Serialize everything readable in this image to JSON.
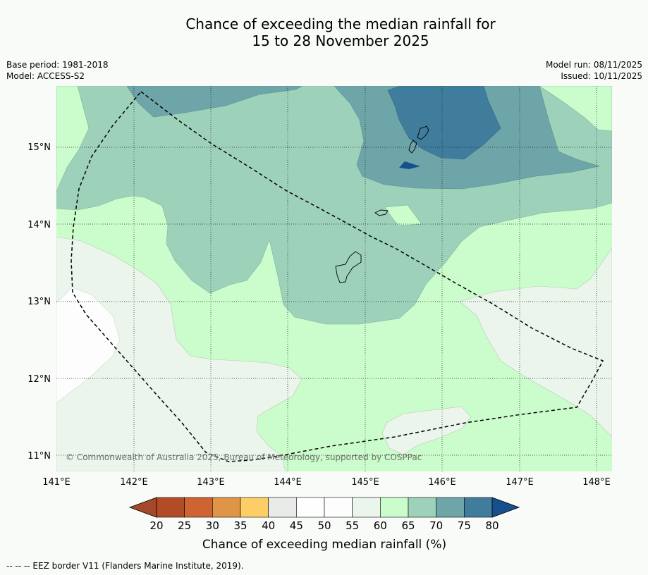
{
  "title": {
    "line1": "Chance of exceeding the median rainfall for",
    "line2": "15 to 28 November 2025"
  },
  "meta": {
    "base_period": "Base period: 1981-2018",
    "model": "Model: ACCESS-S2",
    "model_run": "Model run: 08/11/2025",
    "issued": "Issued: 10/11/2025"
  },
  "map": {
    "lon_labels": [
      "141°E",
      "142°E",
      "143°E",
      "144°E",
      "145°E",
      "146°E",
      "147°E",
      "148°E"
    ],
    "lat_labels": [
      "15°N",
      "14°N",
      "13°N",
      "12°N",
      "11°N"
    ],
    "copyright": "© Commonwealth of Australia 2025, Bureau of Meteorology, supported by COSPPac"
  },
  "colorbar": {
    "ticks": [
      "20",
      "25",
      "30",
      "35",
      "40",
      "45",
      "50",
      "55",
      "60",
      "65",
      "70",
      "75",
      "80"
    ],
    "colors": [
      "#b24c27",
      "#cd6431",
      "#e09445",
      "#fdcd66",
      "#e8ebe7",
      "#fdfefd",
      "#fcfdfc",
      "#ebf5eb",
      "#cbfccb",
      "#9dd1ba",
      "#6ea5a8",
      "#407c9b"
    ],
    "low_color": "#a3482a",
    "high_color": "#164f8c",
    "label": "Chance of exceeding median rainfall (%)"
  },
  "footnote": "--  --  -- EEZ border V11 (Flanders Marine Institute, 2019)."
}
